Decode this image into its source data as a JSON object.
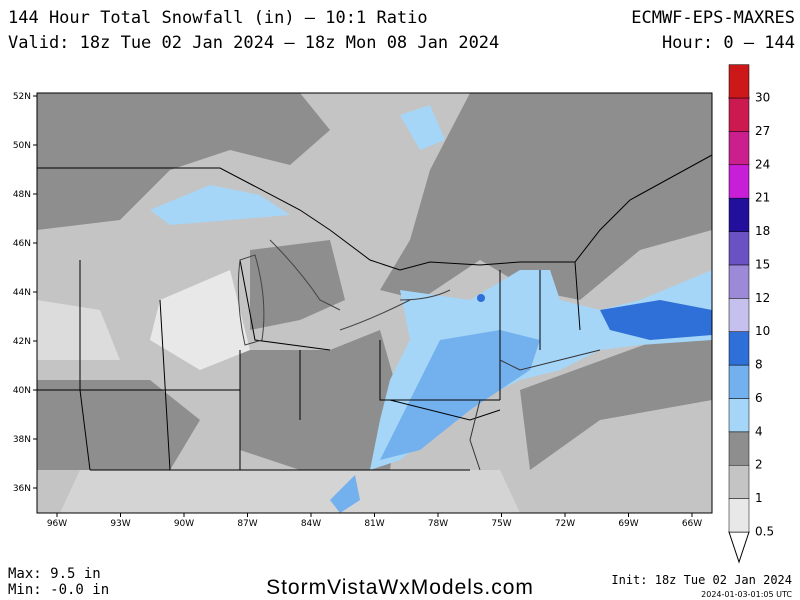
{
  "header": {
    "title": "144 Hour Total Snowfall (in) – 10:1 Ratio",
    "model": "ECMWF-EPS-MAXRES",
    "valid": "Valid: 18z Tue 02 Jan 2024 – 18z Mon 08 Jan 2024",
    "hour": "Hour: 0 – 144"
  },
  "map": {
    "lat_labels": [
      "52N",
      "50N",
      "48N",
      "46N",
      "44N",
      "42N",
      "40N",
      "38N",
      "36N"
    ],
    "lon_labels": [
      "96W",
      "93W",
      "90W",
      "87W",
      "84W",
      "81W",
      "78W",
      "75W",
      "72W",
      "69W",
      "66W"
    ]
  },
  "legend": {
    "levels": [
      0.5,
      1,
      2,
      4,
      6,
      8,
      10,
      12,
      15,
      18,
      21,
      24,
      27,
      30
    ],
    "colors": [
      "#e8e8e8",
      "#c4c4c4",
      "#8e8e8e",
      "#a6d6f7",
      "#73b0ee",
      "#2f6fd8",
      "#c6c0ee",
      "#9c8ad8",
      "#6a52c4",
      "#22109c",
      "#c81ed8",
      "#cc1f8e",
      "#cc1a50",
      "#cc1818"
    ]
  },
  "footer": {
    "max": "Max: 9.5 in",
    "min": "Min: -0.0 in",
    "site": "StormVistaWxModels.com",
    "init": "Init: 18z Tue 02 Jan 2024",
    "stamp": "2024-01-03-01:05 UTC"
  }
}
